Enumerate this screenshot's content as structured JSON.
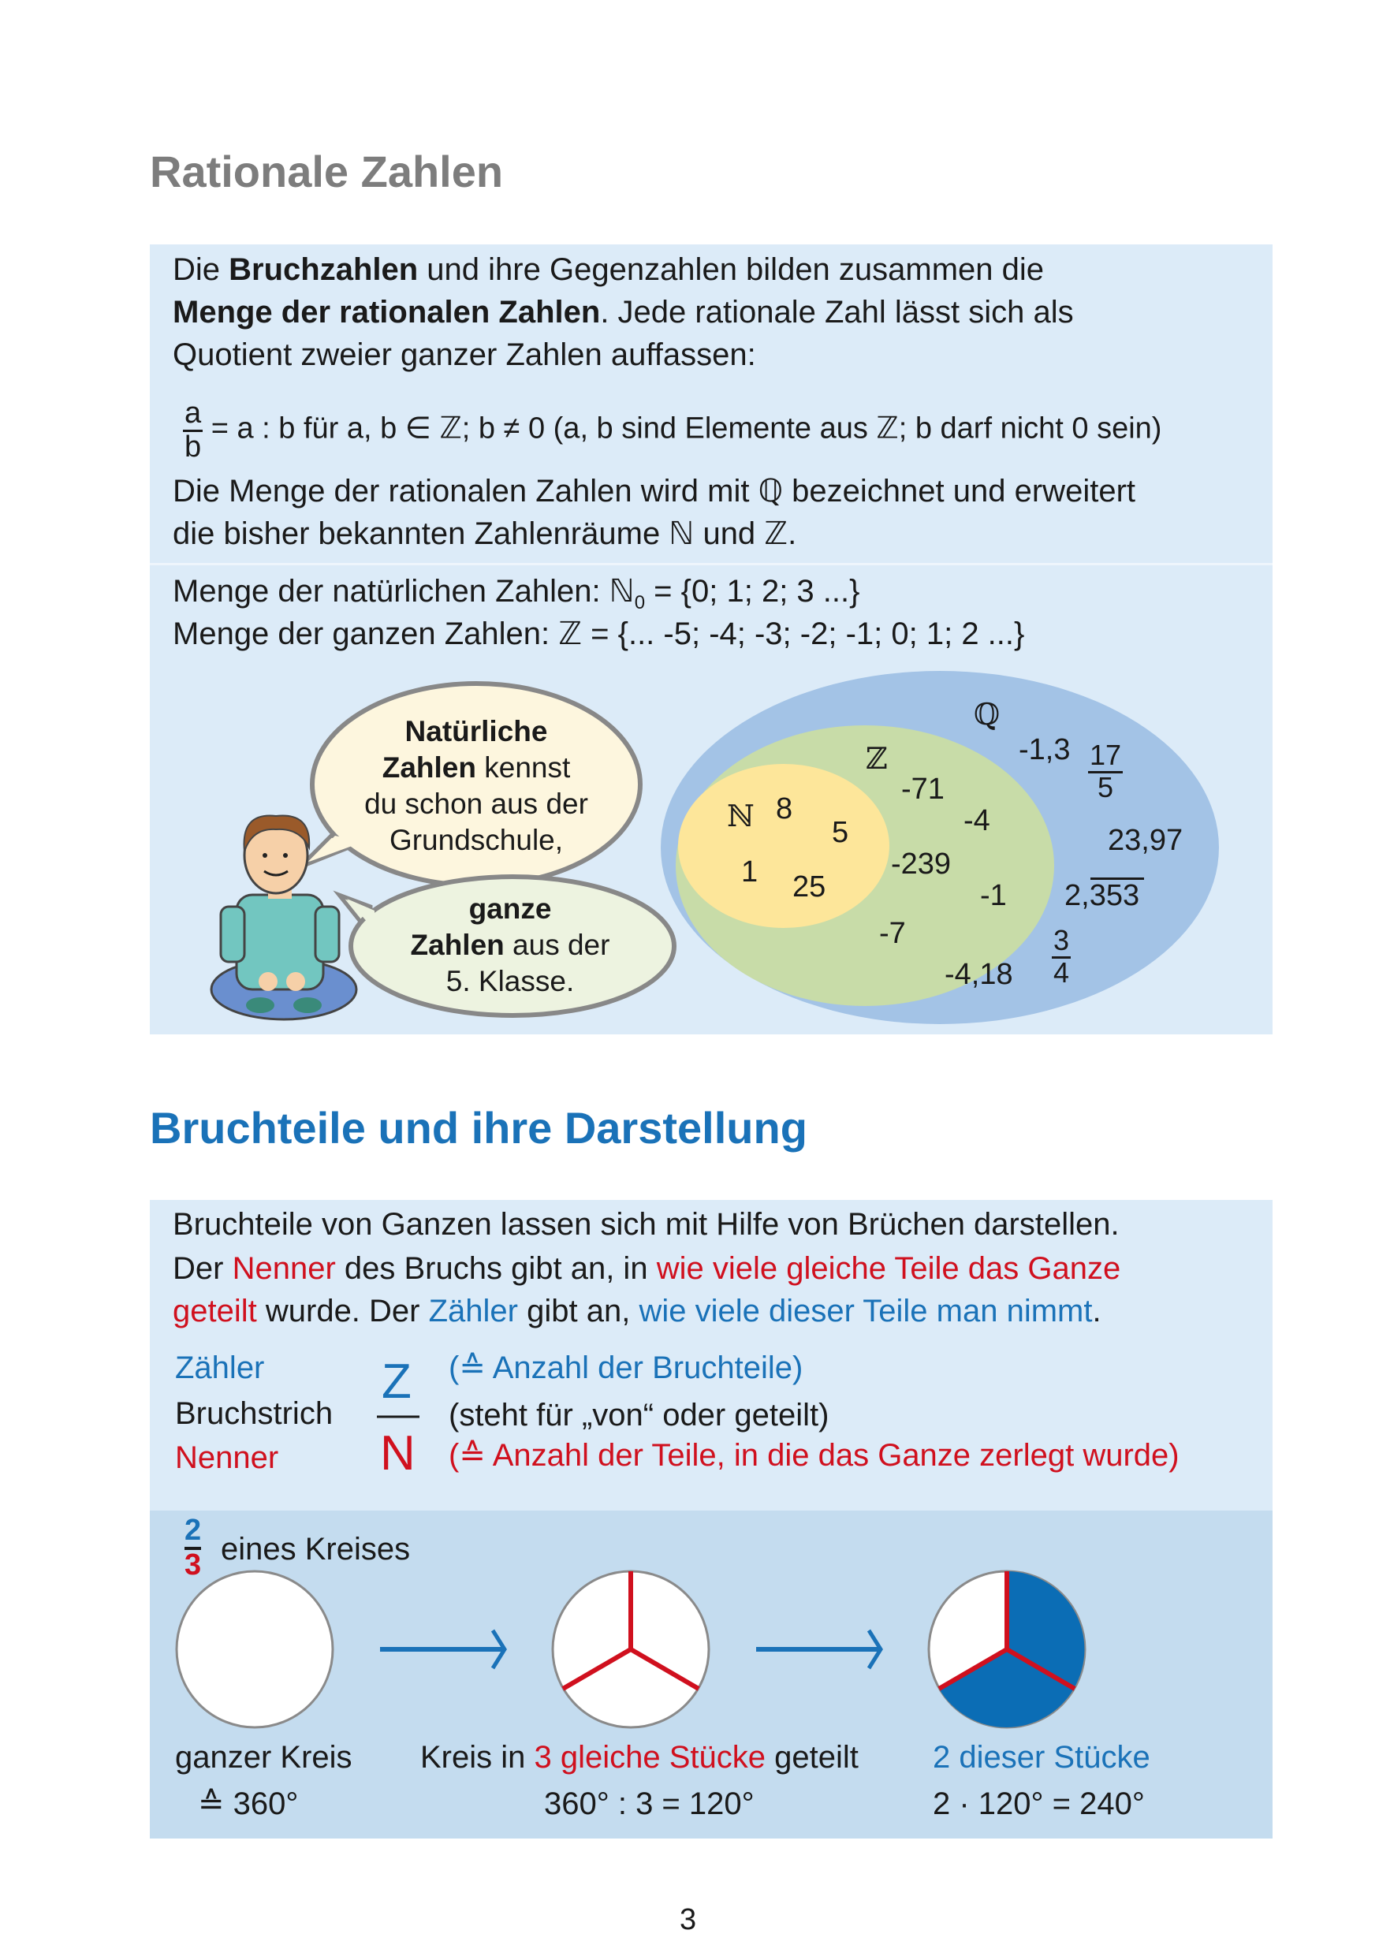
{
  "section1": {
    "title": "Rationale Zahlen",
    "p1": {
      "a": "Die ",
      "b1": "Bruchzahlen",
      "c": " und ihre Gegenzahlen bilden zusammen die"
    },
    "p2": {
      "b2": "Menge der rationalen Zahlen",
      "d": ". Jede rationale Zahl lässt sich als"
    },
    "p3": "Quotient zweier ganzer Zahlen auffassen:",
    "formula": {
      "num": "a",
      "den": "b",
      "rest": " = a : b  für  a, b ∈ ℤ; b ≠ 0 (a, b sind Elemente aus ℤ; b darf nicht 0 sein)"
    },
    "p4": "Die Menge der rationalen Zahlen wird mit ℚ bezeichnet und erweitert",
    "p5": "die bisher bekannten Zahlenräume ℕ und ℤ.",
    "natural": {
      "a": "Menge der natürlichen Zahlen: ℕ",
      "sub": "0",
      "b": " = {0; 1; 2; 3 ...}"
    },
    "integers": "Menge der ganzen Zahlen: ℤ = {... -5; -4; -3; -2; -1; 0; 1; 2 ...}",
    "bubble1": {
      "b1": "Natürliche",
      "b2": "Zahlen",
      "t2": " kennst",
      "t3": "du schon aus der",
      "t4": "Grundschule,"
    },
    "bubble2": {
      "b1": "ganze",
      "b2": "Zahlen",
      "t2": " aus der",
      "t3": "5. Klasse."
    },
    "venn": {
      "colors": {
        "Q": "#a3c3e6",
        "Z": "#c8dca8",
        "N": "#fde69a"
      },
      "labels": {
        "Q": "ℚ",
        "Z": "ℤ",
        "N": "ℕ"
      },
      "N_numbers": [
        "8",
        "5",
        "1",
        "25"
      ],
      "Z_numbers": [
        "-71",
        "-4",
        "-239",
        "-1",
        "-7"
      ],
      "Q_numbers": [
        "-1,3",
        "23,97",
        "2,353",
        "-4,18"
      ],
      "Q_fractions": [
        {
          "num": "17",
          "den": "5"
        },
        {
          "num": "3",
          "den": "4"
        }
      ]
    }
  },
  "section2": {
    "title": "Bruchteile und ihre Darstellung",
    "l1": "Bruchteile von Ganzen lassen sich mit Hilfe von Brüchen darstellen.",
    "l2": {
      "a": "Der ",
      "b": "Nenner",
      "c": " des Bruchs gibt an, in ",
      "d": "wie viele gleiche Teile das Ganze"
    },
    "l3": {
      "a": "geteilt",
      "b": " wurde. Der ",
      "c": "Zähler",
      "d": " gibt an, ",
      "e": "wie viele dieser Teile man nimmt",
      "f": "."
    },
    "terms": {
      "zaehler": "Zähler",
      "bruchstrich": "Bruchstrich",
      "nenner": "Nenner",
      "Z": "Z",
      "N": "N",
      "zaehler_desc": "(≙ Anzahl der Bruchteile)",
      "bruchstrich_desc": "(steht für „von“ oder geteilt)",
      "nenner_desc": "(≙ Anzahl der Teile, in die das Ganze zerlegt wurde)"
    },
    "example": {
      "frac_num": "2",
      "frac_den": "3",
      "label": "eines Kreises",
      "c1": {
        "label": "ganzer Kreis",
        "value": "≙ 360°"
      },
      "c2": {
        "a": "Kreis in ",
        "b": "3 gleiche Stücke",
        "c": " geteilt",
        "value": "360° : 3 = 120°"
      },
      "c3": {
        "label": "2 dieser Stücke",
        "value": "2 · 120° = 240°"
      },
      "filled_fraction": 0.6667,
      "colors": {
        "fill": "#0b6db5",
        "divider": "#d0101e",
        "arrow": "#1a72b8"
      }
    }
  },
  "page_number": "3"
}
